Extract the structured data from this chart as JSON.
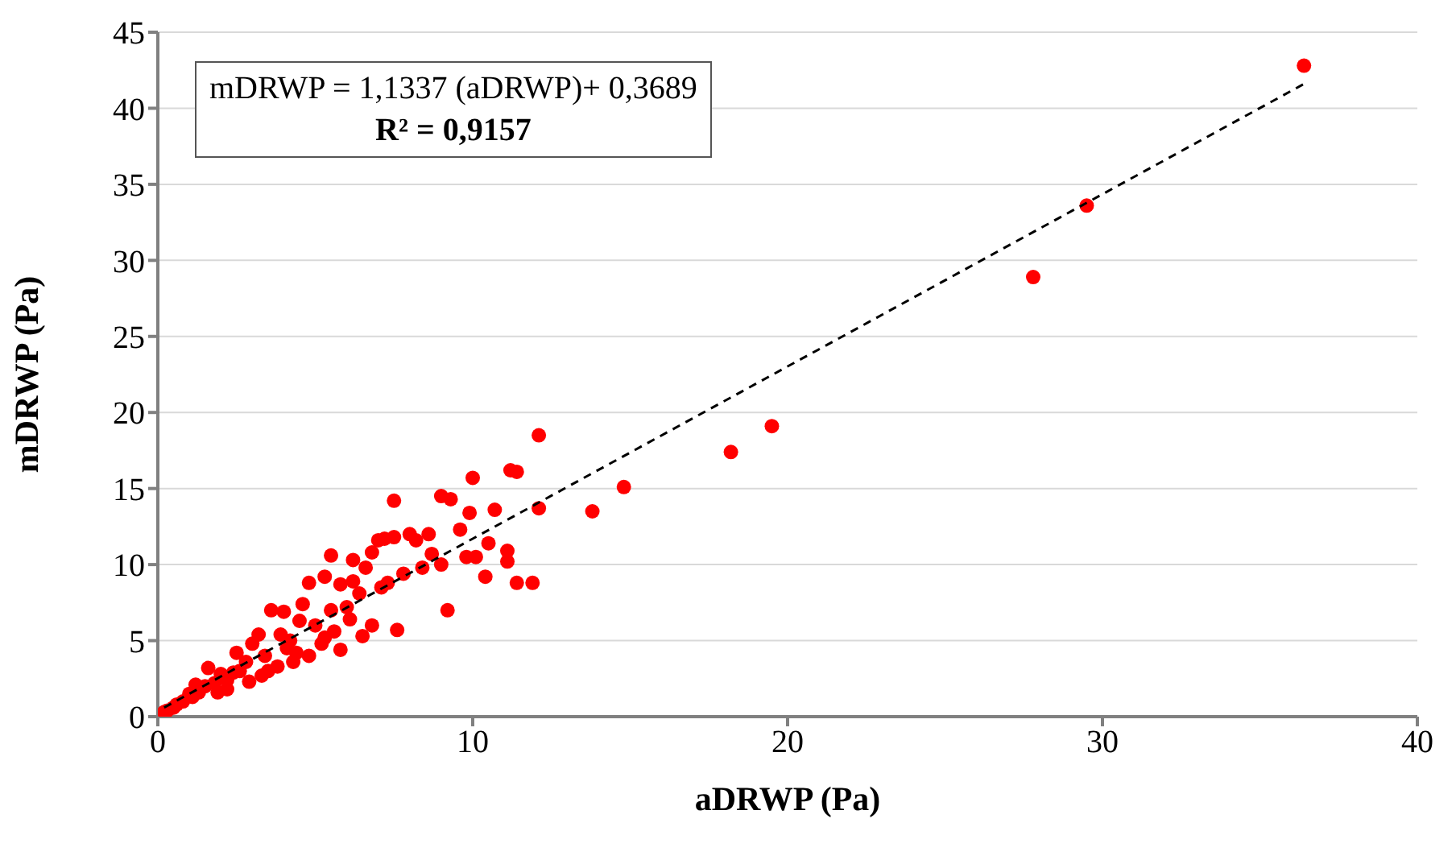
{
  "chart_data": {
    "type": "scatter",
    "xlabel": "aDRWP (Pa)",
    "ylabel": "mDRWP (Pa)",
    "annotations": [
      "mDRWP = 1,1337 (aDRWP)+ 0,3689",
      "R² = 0,9157"
    ],
    "xlim": [
      0,
      40
    ],
    "xticks": [
      0,
      10,
      20,
      30,
      40
    ],
    "ylim": [
      0,
      45
    ],
    "yticks": [
      0,
      5,
      10,
      15,
      20,
      25,
      30,
      35,
      40,
      45
    ],
    "grid": "y",
    "marker": "circle",
    "series": [
      {
        "color": "#ff0000",
        "x": [
          36.4,
          29.5,
          27.8,
          19.5,
          18.2,
          14.8,
          13.8,
          12.1,
          12.1,
          11.9,
          11.4,
          11.2,
          11.4,
          11.1,
          11.1,
          10.7,
          10.5,
          10.4,
          10.1,
          10.0,
          9.9,
          9.8,
          9.6,
          9.3,
          9.0,
          9.0,
          9.2,
          8.6,
          8.2,
          8.0,
          7.8,
          7.5,
          7.5,
          7.2,
          7.0,
          6.8,
          7.6,
          6.6,
          6.2,
          5.5,
          5.8,
          5.3,
          6.4,
          6.0,
          6.8,
          6.5,
          5.6,
          5.8,
          5.2,
          4.8,
          4.6,
          4.5,
          4.2,
          4.4,
          4.8,
          3.9,
          4.0,
          3.6,
          3.2,
          3.4,
          3.0,
          2.8,
          2.6,
          2.4,
          2.2,
          2.0,
          1.8,
          1.6,
          1.5,
          1.3,
          1.1,
          1.0,
          0.8,
          0.6,
          0.5,
          0.3,
          0.2,
          3.5,
          2.9,
          5.0,
          5.5,
          6.2,
          7.1,
          8.4,
          3.8,
          4.1,
          2.5,
          1.9,
          4.3,
          6.1,
          7.3,
          8.7,
          3.3,
          5.3,
          2.2,
          1.2
        ],
        "values": [
          42.8,
          33.6,
          28.9,
          19.1,
          17.4,
          15.1,
          13.5,
          18.5,
          13.7,
          8.8,
          8.8,
          16.2,
          16.1,
          10.9,
          10.2,
          13.6,
          11.4,
          9.2,
          10.5,
          15.7,
          13.4,
          10.5,
          12.3,
          14.3,
          14.5,
          10.0,
          7.0,
          12.0,
          11.6,
          12.0,
          9.4,
          14.2,
          11.8,
          11.7,
          11.6,
          10.8,
          5.7,
          9.8,
          10.3,
          10.6,
          8.7,
          9.2,
          8.1,
          7.2,
          6.0,
          5.3,
          5.6,
          4.4,
          4.8,
          8.8,
          7.4,
          6.3,
          5.0,
          4.2,
          4.0,
          5.4,
          6.9,
          7.0,
          5.4,
          4.0,
          4.8,
          3.6,
          3.0,
          2.9,
          2.4,
          2.8,
          2.2,
          3.2,
          2.0,
          1.6,
          1.3,
          1.5,
          1.0,
          0.8,
          0.6,
          0.4,
          0.3,
          3.0,
          2.3,
          6.0,
          7.0,
          8.9,
          8.5,
          9.8,
          3.3,
          4.5,
          4.2,
          1.6,
          3.6,
          6.4,
          8.8,
          10.7,
          2.7,
          5.2,
          1.8,
          2.1
        ]
      },
      {
        "type": "line",
        "color": "#000000",
        "line_style": "dashed",
        "marker": "none",
        "x": [
          0.2,
          36.4
        ],
        "values": [
          0.6,
          41.6
        ]
      }
    ]
  }
}
